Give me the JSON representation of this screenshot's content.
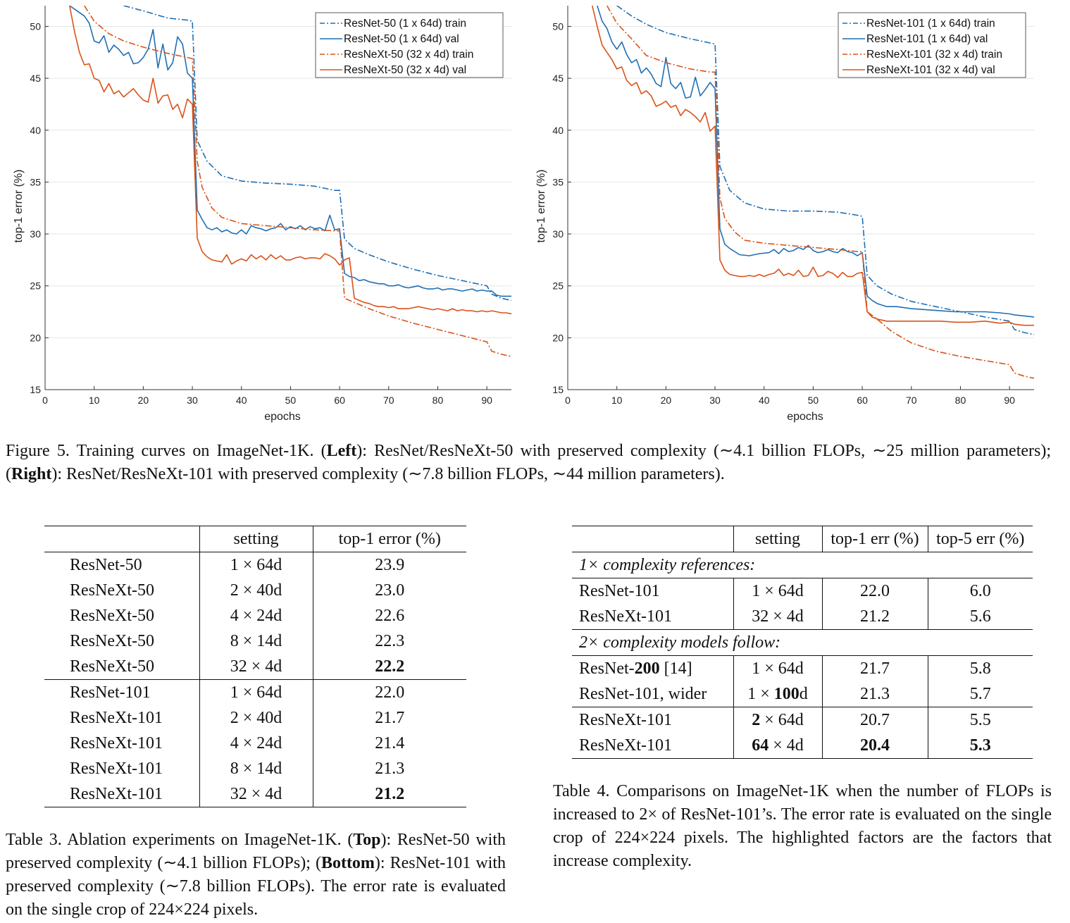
{
  "chart_data": [
    {
      "type": "line",
      "xlabel": "epochs",
      "ylabel": "top-1 error (%)",
      "xlim": [
        0,
        95
      ],
      "ylim": [
        15,
        52
      ],
      "xticks": [
        0,
        10,
        20,
        30,
        40,
        50,
        60,
        70,
        80,
        90
      ],
      "yticks": [
        15,
        20,
        25,
        30,
        35,
        40,
        45,
        50
      ],
      "legend": "top-right",
      "series": [
        {
          "name": "ResNet-50 (1 x 64d) train",
          "color": "#1f6fb4",
          "style": "dashdot",
          "x": [
            16,
            20,
            25,
            29,
            30,
            31,
            33,
            36,
            40,
            45,
            50,
            55,
            59,
            60,
            61,
            63,
            66,
            70,
            75,
            80,
            85,
            90,
            91,
            93,
            95
          ],
          "y": [
            52,
            51.5,
            50.8,
            50.6,
            50.5,
            39,
            37,
            35.6,
            35.1,
            34.9,
            34.8,
            34.6,
            34.2,
            34.2,
            29.5,
            28.6,
            28,
            27.3,
            26.6,
            26,
            25.5,
            25,
            24.2,
            23.8,
            23.6
          ]
        },
        {
          "name": "ResNet-50 (1 x 64d) val",
          "color": "#1f6fb4",
          "style": "solid",
          "x": [
            5,
            8,
            9,
            10,
            11,
            12,
            13,
            14,
            15,
            16,
            17,
            18,
            19,
            20,
            21,
            22,
            23,
            24,
            25,
            26,
            27,
            28,
            29,
            30,
            31,
            32,
            33,
            34,
            35,
            36,
            37,
            38,
            39,
            40,
            41,
            42,
            43,
            44,
            45,
            46,
            47,
            48,
            49,
            50,
            51,
            52,
            53,
            54,
            55,
            56,
            57,
            58,
            59,
            60,
            61,
            62,
            63,
            64,
            65,
            66,
            67,
            68,
            69,
            70,
            71,
            72,
            73,
            74,
            75,
            76,
            77,
            78,
            79,
            80,
            81,
            82,
            83,
            84,
            85,
            86,
            87,
            88,
            89,
            90,
            91,
            92,
            93,
            94,
            95
          ],
          "y": [
            52,
            51,
            50.3,
            48.6,
            48.4,
            49.1,
            47.5,
            48.2,
            47.8,
            47.2,
            47.5,
            46.4,
            46.5,
            47,
            47.8,
            49.7,
            46,
            48.3,
            45.8,
            46.5,
            49,
            48.3,
            45.5,
            45,
            32.3,
            31.4,
            30.6,
            30.4,
            30.6,
            30.2,
            30.4,
            30.1,
            30,
            30.4,
            30,
            30.8,
            30.6,
            30.5,
            30.3,
            30.5,
            30.6,
            31,
            30.4,
            30.7,
            30.5,
            30.8,
            30.4,
            30.7,
            30.5,
            30.6,
            30.3,
            31.8,
            30.4,
            30.5,
            26.2,
            25.9,
            25.8,
            25.5,
            25.6,
            25.4,
            25.3,
            25.2,
            25.2,
            25,
            25,
            25.1,
            24.9,
            24.8,
            24.9,
            25,
            24.8,
            24.7,
            24.7,
            24.8,
            24.6,
            24.7,
            24.7,
            24.6,
            24.5,
            24.6,
            24.7,
            24.5,
            24.6,
            24.5,
            24.5,
            24.1,
            24,
            24,
            24
          ]
        },
        {
          "name": "ResNeXt-50 (32 x 4d) train",
          "color": "#d95319",
          "style": "dashdot",
          "x": [
            8,
            10,
            13,
            16,
            20,
            25,
            29,
            30,
            31,
            32,
            34,
            36,
            40,
            45,
            50,
            55,
            59,
            60,
            61,
            63,
            66,
            70,
            75,
            80,
            85,
            90,
            91,
            93,
            95
          ],
          "y": [
            52,
            50.5,
            49.3,
            48.6,
            48,
            47.4,
            47,
            46.9,
            37,
            34.5,
            32.5,
            31.6,
            31,
            30.8,
            30.6,
            30.4,
            30.3,
            30.3,
            23.8,
            23.4,
            22.8,
            22.1,
            21.4,
            20.8,
            20.2,
            19.6,
            18.7,
            18.4,
            18.2
          ]
        },
        {
          "name": "ResNeXt-50 (32 x 4d) val",
          "color": "#d95319",
          "style": "solid",
          "x": [
            5,
            6,
            7,
            8,
            9,
            10,
            11,
            12,
            13,
            14,
            15,
            16,
            17,
            18,
            19,
            20,
            21,
            22,
            23,
            24,
            25,
            26,
            27,
            28,
            29,
            30,
            31,
            32,
            33,
            34,
            35,
            36,
            37,
            38,
            39,
            40,
            41,
            42,
            43,
            44,
            45,
            46,
            47,
            48,
            49,
            50,
            51,
            52,
            53,
            54,
            55,
            56,
            57,
            58,
            59,
            60,
            61,
            62,
            63,
            64,
            65,
            66,
            67,
            68,
            69,
            70,
            71,
            72,
            73,
            74,
            75,
            76,
            77,
            78,
            79,
            80,
            81,
            82,
            83,
            84,
            85,
            86,
            87,
            88,
            89,
            90,
            91,
            92,
            93,
            94,
            95
          ],
          "y": [
            52,
            49.5,
            47.5,
            46.3,
            46.4,
            45,
            44.8,
            43.7,
            44.5,
            43.5,
            43.8,
            43.2,
            43.6,
            44,
            43.4,
            42.9,
            42.7,
            45,
            42.6,
            43.3,
            43.4,
            42,
            42.5,
            41.2,
            43,
            42.5,
            29.6,
            28.3,
            27.8,
            27.5,
            27.4,
            27.3,
            28,
            27.1,
            27.4,
            27.6,
            27.4,
            28,
            27.6,
            27.9,
            27.5,
            28,
            27.6,
            27.9,
            27.5,
            27.5,
            27.7,
            27.8,
            27.6,
            27.7,
            27.7,
            27.6,
            28.1,
            27.9,
            27.6,
            27,
            27.5,
            27.7,
            23.8,
            23.6,
            23.4,
            23.3,
            23.1,
            23,
            23,
            22.9,
            23,
            22.8,
            22.8,
            22.8,
            22.9,
            23,
            22.9,
            22.8,
            22.7,
            22.8,
            22.7,
            22.6,
            22.8,
            22.6,
            22.7,
            22.6,
            22.6,
            22.5,
            22.6,
            22.5,
            22.6,
            22.5,
            22.4,
            22.4,
            22.3
          ]
        }
      ]
    },
    {
      "type": "line",
      "xlabel": "epochs",
      "ylabel": "top-1 error (%)",
      "xlim": [
        0,
        95
      ],
      "ylim": [
        15,
        52
      ],
      "xticks": [
        0,
        10,
        20,
        30,
        40,
        50,
        60,
        70,
        80,
        90
      ],
      "yticks": [
        15,
        20,
        25,
        30,
        35,
        40,
        45,
        50
      ],
      "legend": "top-right",
      "series": [
        {
          "name": "ResNet-101 (1 x 64d) train",
          "color": "#1f6fb4",
          "style": "dashdot",
          "x": [
            10,
            13,
            16,
            20,
            25,
            29,
            30,
            31,
            33,
            36,
            40,
            45,
            50,
            55,
            59,
            60,
            61,
            63,
            66,
            70,
            75,
            80,
            85,
            90,
            91,
            93,
            95
          ],
          "y": [
            52,
            51,
            50.2,
            49.4,
            48.8,
            48.4,
            48.3,
            36.5,
            34.2,
            33,
            32.4,
            32.2,
            32.2,
            32.1,
            31.8,
            31.7,
            26,
            25,
            24.2,
            23.5,
            23,
            22.5,
            22,
            21.6,
            20.8,
            20.5,
            20.3
          ]
        },
        {
          "name": "ResNet-101 (1 x 64d) val",
          "color": "#1f6fb4",
          "style": "solid",
          "x": [
            6,
            7,
            8,
            9,
            10,
            11,
            12,
            13,
            14,
            15,
            16,
            17,
            18,
            19,
            20,
            21,
            22,
            23,
            24,
            25,
            26,
            27,
            28,
            29,
            30,
            31,
            32,
            33,
            35,
            37,
            39,
            41,
            42,
            43,
            44,
            45,
            46,
            47,
            48,
            49,
            50,
            51,
            52,
            53,
            54,
            55,
            56,
            57,
            58,
            59,
            60,
            61,
            62,
            63,
            65,
            67,
            70,
            73,
            76,
            79,
            82,
            85,
            88,
            90,
            91,
            93,
            95
          ],
          "y": [
            52,
            50.5,
            49.8,
            48.5,
            47.8,
            48.5,
            47.3,
            46.5,
            46.8,
            45.5,
            46,
            45.4,
            44.5,
            44.2,
            47,
            44.5,
            44,
            44.6,
            43.1,
            43.2,
            45.1,
            43.3,
            43.9,
            44.6,
            44,
            30.5,
            29,
            28.6,
            28,
            27.9,
            28.1,
            28.2,
            28.5,
            28.1,
            28.6,
            28.3,
            28.4,
            28.7,
            28.5,
            28.9,
            28.4,
            28.2,
            28.3,
            28.5,
            28.3,
            28.2,
            28.6,
            28.3,
            28.2,
            27.9,
            28.2,
            24,
            23.6,
            23.3,
            23,
            23,
            22.8,
            22.7,
            22.6,
            22.5,
            22.5,
            22.5,
            22.4,
            22.3,
            22.2,
            22.1,
            22
          ]
        },
        {
          "name": "ResNeXt-101 (32 x 4d) train",
          "color": "#d95319",
          "style": "dashdot",
          "x": [
            8,
            10,
            13,
            16,
            20,
            25,
            29,
            30,
            31,
            32,
            34,
            36,
            40,
            45,
            50,
            55,
            59,
            60,
            61,
            63,
            66,
            70,
            75,
            80,
            85,
            90,
            91,
            93,
            95
          ],
          "y": [
            52,
            50.3,
            48.8,
            47.2,
            46.5,
            45.9,
            45.6,
            45.6,
            33.5,
            31.5,
            30.2,
            29.4,
            29.1,
            28.9,
            28.7,
            28.5,
            28.3,
            28.3,
            22.5,
            21.8,
            20.6,
            19.5,
            18.7,
            18.2,
            17.8,
            17.4,
            16.6,
            16.3,
            16.1
          ]
        },
        {
          "name": "ResNeXt-101 (32 x 4d) val",
          "color": "#d95319",
          "style": "solid",
          "x": [
            5,
            6,
            7,
            8,
            9,
            10,
            11,
            12,
            13,
            14,
            15,
            16,
            17,
            18,
            19,
            20,
            21,
            22,
            23,
            24,
            25,
            26,
            27,
            28,
            29,
            30,
            31,
            32,
            33,
            34,
            35,
            36,
            37,
            38,
            39,
            40,
            41,
            42,
            43,
            44,
            45,
            46,
            47,
            48,
            49,
            50,
            51,
            52,
            53,
            54,
            55,
            56,
            57,
            58,
            59,
            60,
            61,
            62,
            63,
            65,
            67,
            70,
            73,
            76,
            79,
            82,
            85,
            88,
            90,
            91,
            93,
            95
          ],
          "y": [
            52,
            50,
            48.2,
            47.5,
            46.8,
            45.9,
            46.1,
            44.8,
            44.3,
            44.6,
            43.5,
            43.8,
            43.3,
            42.3,
            42.5,
            42.8,
            42.2,
            42.4,
            41.4,
            42,
            41.7,
            41.3,
            40.8,
            41.7,
            39.9,
            40.4,
            27.5,
            26.5,
            26.1,
            26,
            25.9,
            25.9,
            26,
            25.9,
            26.1,
            25.9,
            26.1,
            26.2,
            26.6,
            26,
            26.2,
            26,
            26.5,
            25.9,
            26,
            26.8,
            25.9,
            26,
            26.4,
            26.2,
            25.8,
            26.3,
            25.9,
            25.9,
            26.2,
            26.3,
            22.5,
            22,
            21.8,
            21.6,
            21.6,
            21.6,
            21.6,
            21.6,
            21.5,
            21.5,
            21.6,
            21.4,
            21.5,
            21.3,
            21.2,
            21.2
          ]
        }
      ]
    }
  ],
  "figure5_caption": {
    "prefix": "Figure 5. Training curves on ImageNet-1K. (",
    "left_bold": "Left",
    "mid1": "): ResNet/ResNeXt-50 with preserved complexity (∼4.1 billion FLOPs, ∼25 million parameters); (",
    "right_bold": "Right",
    "suffix": "): ResNet/ResNeXt-101 with preserved complexity (∼7.8 billion FLOPs, ∼44 million parameters)."
  },
  "table3": {
    "headers": [
      "",
      "setting",
      "top-1 error (%)"
    ],
    "rows": [
      [
        "ResNet-50",
        "1 × 64d",
        "23.9"
      ],
      [
        "ResNeXt-50",
        "2 × 40d",
        "23.0"
      ],
      [
        "ResNeXt-50",
        "4 × 24d",
        "22.6"
      ],
      [
        "ResNeXt-50",
        "8 × 14d",
        "22.3"
      ],
      [
        "ResNeXt-50",
        "32 × 4d",
        "22.2"
      ],
      [
        "ResNet-101",
        "1 × 64d",
        "22.0"
      ],
      [
        "ResNeXt-101",
        "2 × 40d",
        "21.7"
      ],
      [
        "ResNeXt-101",
        "4 × 24d",
        "21.4"
      ],
      [
        "ResNeXt-101",
        "8 × 14d",
        "21.3"
      ],
      [
        "ResNeXt-101",
        "32 × 4d",
        "21.2"
      ]
    ],
    "caption": {
      "p1": "Table 3. Ablation experiments on ImageNet-1K. (",
      "b1": "Top",
      "p2": "): ResNet-50 with preserved complexity (∼4.1 billion FLOPs); (",
      "b2": "Bottom",
      "p3": "): ResNet-101 with preserved complexity (∼7.8 billion FLOPs). The error rate is evaluated on the single crop of 224×224 pixels."
    }
  },
  "table4": {
    "headers": [
      "",
      "setting",
      "top-1 err (%)",
      "top-5 err (%)"
    ],
    "section1": "1× complexity references:",
    "section2": "2× complexity models follow:",
    "r1": {
      "model": "ResNet-101",
      "setting": "1 × 64d",
      "top1": "22.0",
      "top5": "6.0"
    },
    "r2": {
      "model": "ResNeXt-101",
      "setting": "32 × 4d",
      "top1": "21.2",
      "top5": "5.6"
    },
    "r3": {
      "model_a": "ResNet-",
      "model_b": "200",
      "model_c": " [14]",
      "setting": "1 × 64d",
      "top1": "21.7",
      "top5": "5.8"
    },
    "r4": {
      "model": "ResNet-101, wider",
      "setting_a": "1 × ",
      "setting_b": "100",
      "setting_c": "d",
      "top1": "21.3",
      "top5": "5.7"
    },
    "r5": {
      "model": "ResNeXt-101",
      "setting_a": "2",
      "setting_b": " × 64d",
      "top1": "20.7",
      "top5": "5.5"
    },
    "r6": {
      "model": "ResNeXt-101",
      "setting_a": "64",
      "setting_b": " × 4d",
      "top1": "20.4",
      "top5": "5.3"
    },
    "caption": "Table 4. Comparisons on ImageNet-1K when the number of FLOPs is increased to 2× of ResNet-101’s. The error rate is evaluated on the single crop of 224×224 pixels. The highlighted factors are the factors that increase complexity."
  }
}
